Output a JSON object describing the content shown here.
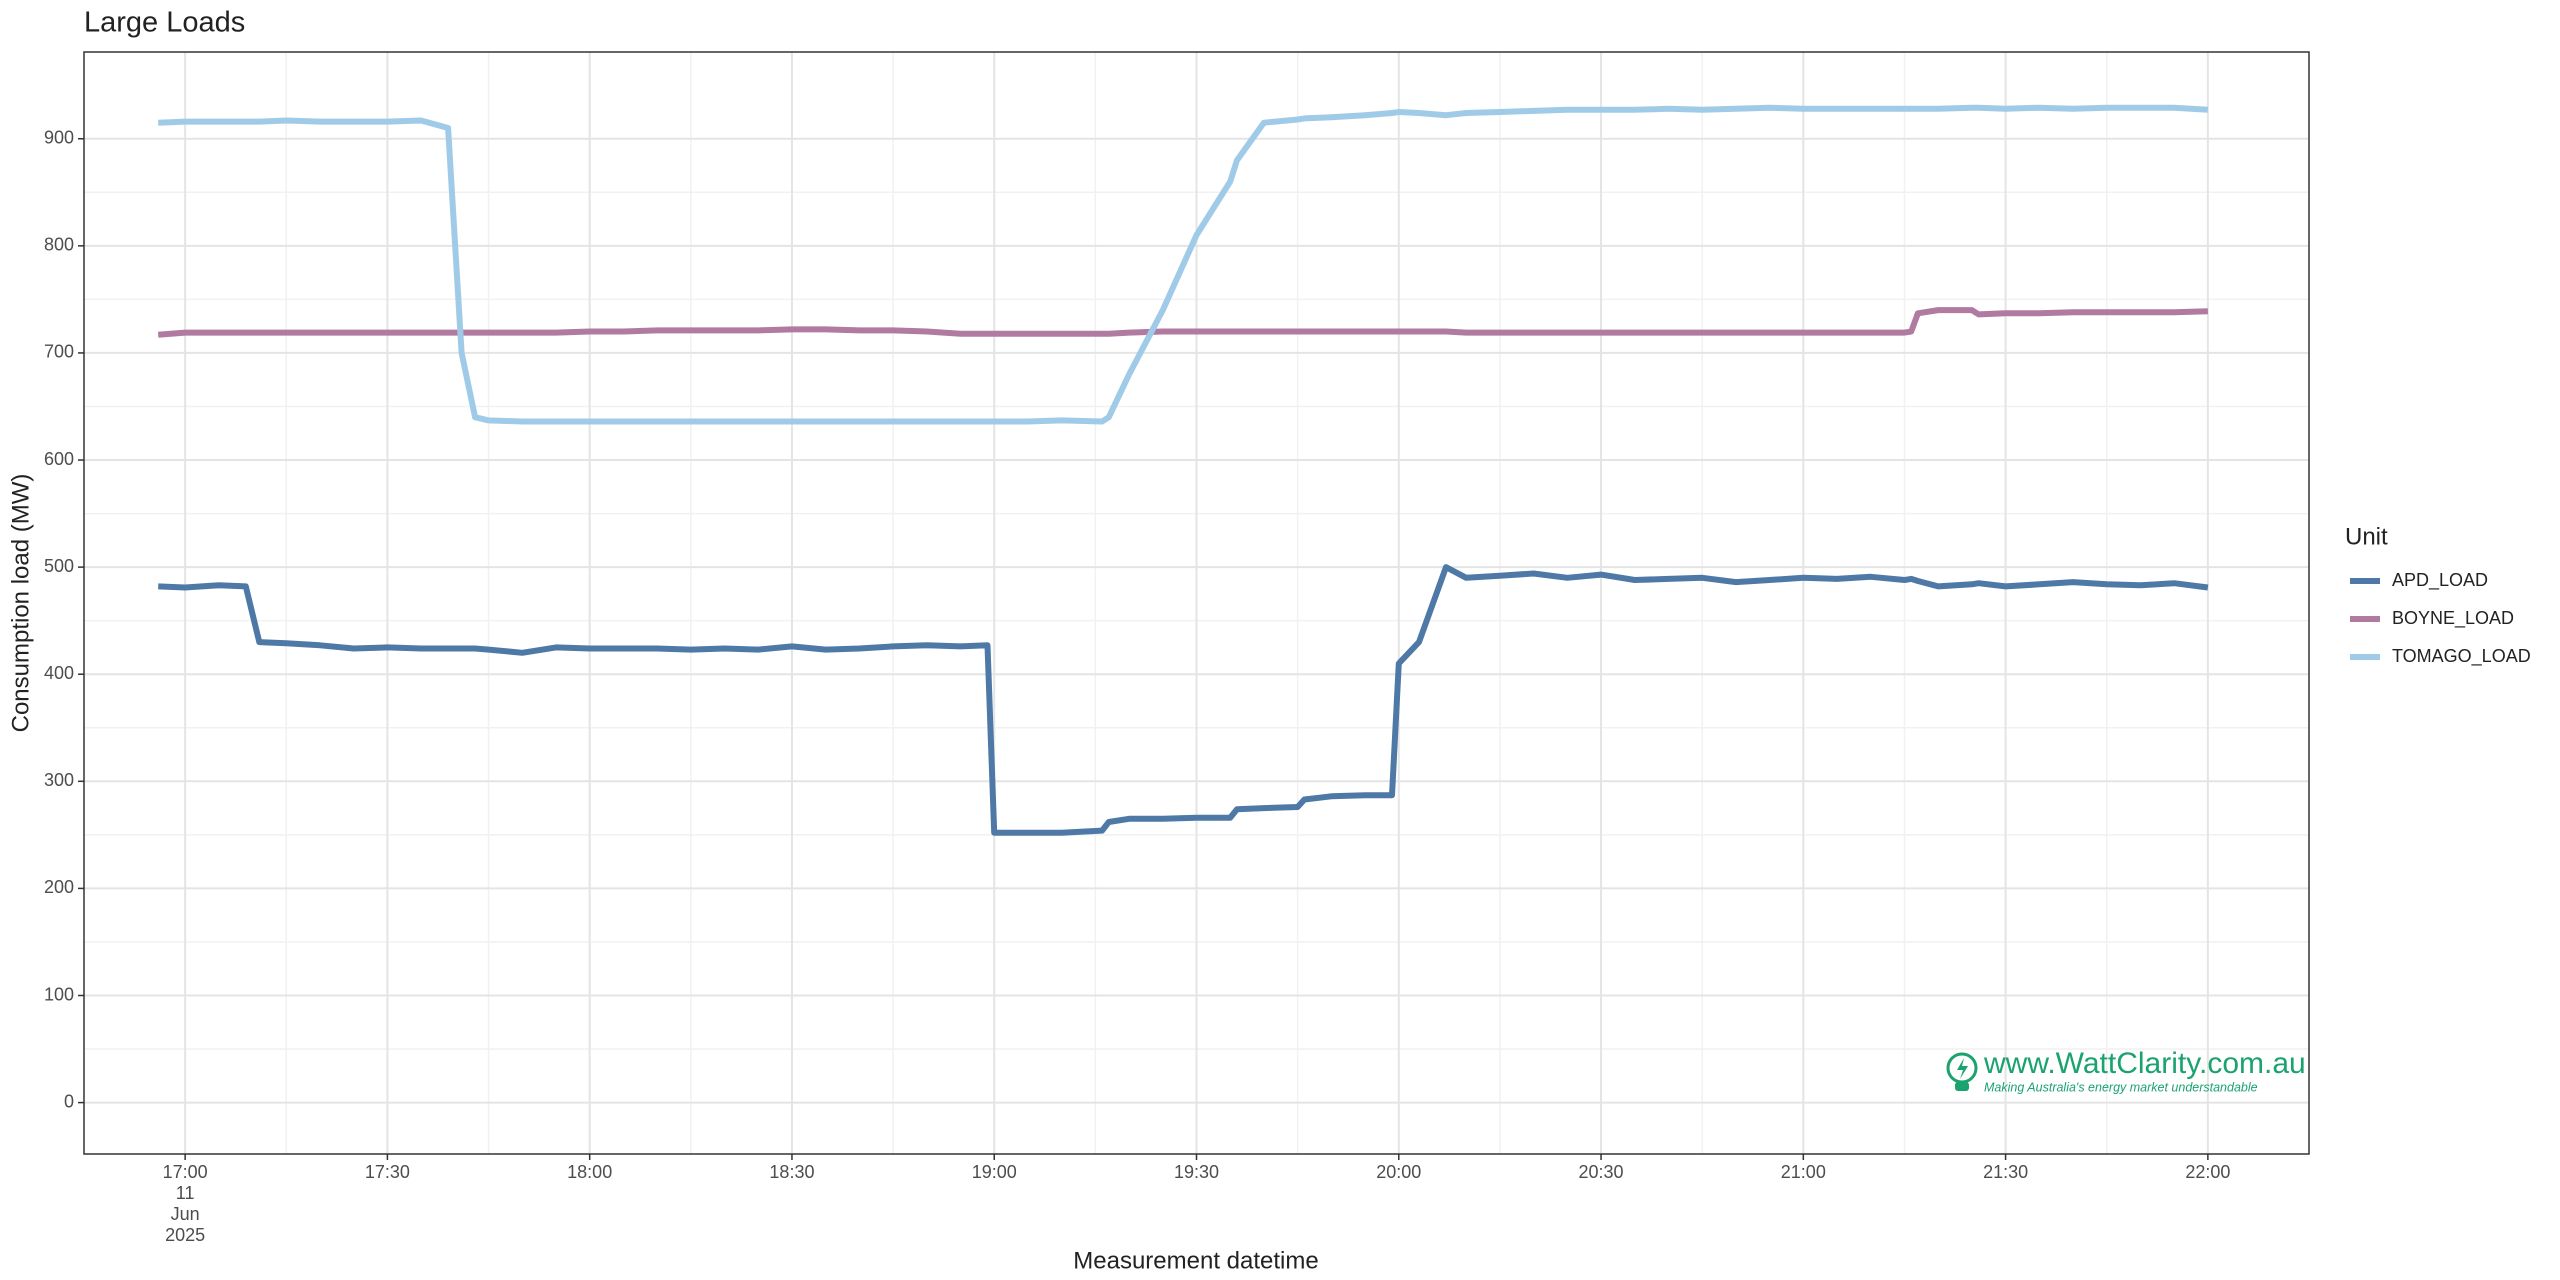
{
  "chart_data": {
    "type": "line",
    "title": "Large Loads",
    "x_label": "Measurement datetime",
    "y_label": "Consumption load (MW)",
    "x_date_label": {
      "day": "11",
      "month": "Jun",
      "year": "2025"
    },
    "legend_title": "Unit",
    "legend": "right",
    "grid": true,
    "minor_grid": true,
    "x": [
      "16:56",
      "17:00",
      "17:05",
      "17:09",
      "17:11",
      "17:15",
      "17:20",
      "17:25",
      "17:30",
      "17:35",
      "17:39",
      "17:41",
      "17:43",
      "17:45",
      "17:50",
      "17:55",
      "18:00",
      "18:05",
      "18:10",
      "18:15",
      "18:20",
      "18:25",
      "18:30",
      "18:35",
      "18:40",
      "18:45",
      "18:50",
      "18:55",
      "18:59",
      "19:00",
      "19:05",
      "19:10",
      "19:16",
      "19:17",
      "19:20",
      "19:25",
      "19:30",
      "19:35",
      "19:36",
      "19:40",
      "19:45",
      "19:46",
      "19:50",
      "19:55",
      "19:59",
      "20:00",
      "20:03",
      "20:07",
      "20:10",
      "20:15",
      "20:20",
      "20:25",
      "20:30",
      "20:35",
      "20:40",
      "20:45",
      "20:50",
      "20:55",
      "21:00",
      "21:05",
      "21:10",
      "21:15",
      "21:16",
      "21:17",
      "21:20",
      "21:25",
      "21:26",
      "21:30",
      "21:35",
      "21:40",
      "21:45",
      "21:50",
      "21:55",
      "22:00"
    ],
    "xlim": [
      "16:45",
      "22:15"
    ],
    "xticks": [
      "17:00",
      "17:30",
      "18:00",
      "18:30",
      "19:00",
      "19:30",
      "20:00",
      "20:30",
      "21:00",
      "21:30",
      "22:00"
    ],
    "ylim": [
      -48,
      981
    ],
    "yticks": [
      0,
      100,
      200,
      300,
      400,
      500,
      600,
      700,
      800,
      900
    ],
    "series": [
      {
        "name": "APD_LOAD",
        "color": "#4e79a7",
        "values": [
          482,
          481,
          483,
          482,
          430,
          429,
          427,
          424,
          425,
          424,
          424,
          424,
          424,
          423,
          420,
          425,
          424,
          424,
          424,
          423,
          424,
          423,
          426,
          423,
          424,
          426,
          427,
          426,
          427,
          252,
          252,
          252,
          254,
          262,
          265,
          265,
          266,
          266,
          274,
          275,
          276,
          283,
          286,
          287,
          287,
          410,
          430,
          500,
          490,
          492,
          494,
          490,
          493,
          488,
          489,
          490,
          486,
          488,
          490,
          489,
          491,
          488,
          489,
          487,
          482,
          484,
          485,
          482,
          484,
          486,
          484,
          483,
          485,
          481
        ]
      },
      {
        "name": "BOYNE_LOAD",
        "color": "#b07aa1",
        "values": [
          717,
          719,
          719,
          719,
          719,
          719,
          719,
          719,
          719,
          719,
          719,
          719,
          719,
          719,
          719,
          719,
          720,
          720,
          721,
          721,
          721,
          721,
          722,
          722,
          721,
          721,
          720,
          718,
          718,
          718,
          718,
          718,
          718,
          718,
          719,
          720,
          720,
          720,
          720,
          720,
          720,
          720,
          720,
          720,
          720,
          720,
          720,
          720,
          719,
          719,
          719,
          719,
          719,
          719,
          719,
          719,
          719,
          719,
          719,
          719,
          719,
          719,
          720,
          737,
          740,
          740,
          736,
          737,
          737,
          738,
          738,
          738,
          738,
          739
        ]
      },
      {
        "name": "TOMAGO_LOAD",
        "color": "#a0cbe8",
        "values": [
          915,
          916,
          916,
          916,
          916,
          917,
          916,
          916,
          916,
          917,
          910,
          700,
          640,
          637,
          636,
          636,
          636,
          636,
          636,
          636,
          636,
          636,
          636,
          636,
          636,
          636,
          636,
          636,
          636,
          636,
          636,
          637,
          636,
          640,
          680,
          740,
          810,
          860,
          880,
          915,
          918,
          919,
          920,
          922,
          924,
          925,
          924,
          922,
          924,
          925,
          926,
          927,
          927,
          927,
          928,
          927,
          928,
          929,
          928,
          928,
          928,
          928,
          928,
          928,
          928,
          929,
          929,
          928,
          929,
          928,
          929,
          929,
          929,
          927
        ]
      }
    ],
    "watermark": {
      "text": "www.WattClarity.com.au",
      "tagline": "Making Australia's energy market understandable"
    }
  }
}
